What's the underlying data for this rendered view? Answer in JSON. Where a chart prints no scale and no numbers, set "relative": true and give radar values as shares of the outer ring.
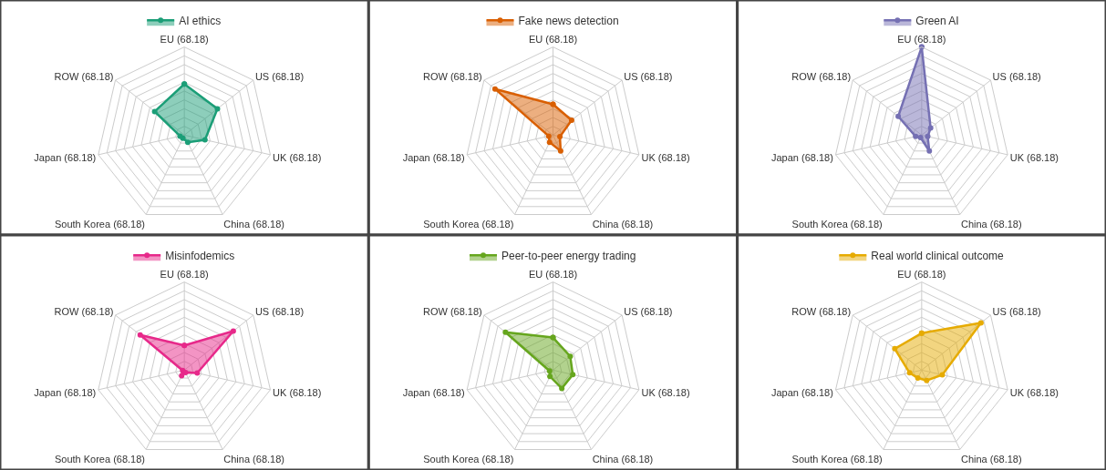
{
  "chart_data": [
    {
      "type": "radar",
      "categories": [
        "EU (68.18)",
        "US (68.18)",
        "UK (68.18)",
        "China (68.18)",
        "South Korea (68.18)",
        "Japan (68.18)",
        "ROW (68.18)"
      ],
      "relative": true,
      "legend": "top",
      "marker": "circle",
      "grid": true,
      "series": [
        {
          "name": "AI ethics",
          "color": "#1b9e77",
          "values": [
            0.58,
            0.48,
            0.24,
            0.09,
            0.04,
            0.05,
            0.43
          ]
        }
      ]
    },
    {
      "type": "radar",
      "categories": [
        "EU (68.18)",
        "US (68.18)",
        "UK (68.18)",
        "China (68.18)",
        "South Korea (68.18)",
        "Japan (68.18)",
        "ROW (68.18)"
      ],
      "relative": true,
      "legend": "top",
      "marker": "circle",
      "grid": true,
      "series": [
        {
          "name": "Fake news detection",
          "color": "#d95f02",
          "values": [
            0.35,
            0.27,
            0.08,
            0.2,
            0.09,
            0.05,
            0.84
          ]
        }
      ]
    },
    {
      "type": "radar",
      "categories": [
        "EU (68.18)",
        "US (68.18)",
        "UK (68.18)",
        "China (68.18)",
        "South Korea (68.18)",
        "Japan (68.18)",
        "ROW (68.18)"
      ],
      "relative": true,
      "legend": "top",
      "marker": "circle",
      "grid": true,
      "series": [
        {
          "name": "Green AI",
          "color": "#7570b3",
          "values": [
            1.0,
            0.13,
            0.07,
            0.2,
            0.03,
            0.07,
            0.34
          ]
        }
      ]
    },
    {
      "type": "radar",
      "categories": [
        "EU (68.18)",
        "US (68.18)",
        "UK (68.18)",
        "China (68.18)",
        "South Korea (68.18)",
        "Japan (68.18)",
        "ROW (68.18)"
      ],
      "relative": true,
      "legend": "top",
      "marker": "circle",
      "grid": true,
      "series": [
        {
          "name": "Misinfodemics",
          "color": "#e7298a",
          "values": [
            0.28,
            0.71,
            0.15,
            0.03,
            0.07,
            0.02,
            0.64
          ]
        }
      ]
    },
    {
      "type": "radar",
      "categories": [
        "EU (68.18)",
        "US (68.18)",
        "UK (68.18)",
        "China (68.18)",
        "South Korea (68.18)",
        "Japan (68.18)",
        "ROW (68.18)"
      ],
      "relative": true,
      "legend": "top",
      "marker": "circle",
      "grid": true,
      "series": [
        {
          "name": "Peer-to-peer energy trading",
          "color": "#66a61e",
          "values": [
            0.37,
            0.25,
            0.23,
            0.23,
            0.08,
            0.04,
            0.69
          ]
        }
      ]
    },
    {
      "type": "radar",
      "categories": [
        "EU (68.18)",
        "US (68.18)",
        "UK (68.18)",
        "China (68.18)",
        "South Korea (68.18)",
        "Japan (68.18)",
        "ROW (68.18)"
      ],
      "relative": true,
      "legend": "top",
      "marker": "circle",
      "grid": true,
      "series": [
        {
          "name": "Real world clinical outcome",
          "color": "#e6ab02",
          "values": [
            0.42,
            0.86,
            0.24,
            0.13,
            0.1,
            0.14,
            0.39
          ]
        }
      ]
    }
  ]
}
